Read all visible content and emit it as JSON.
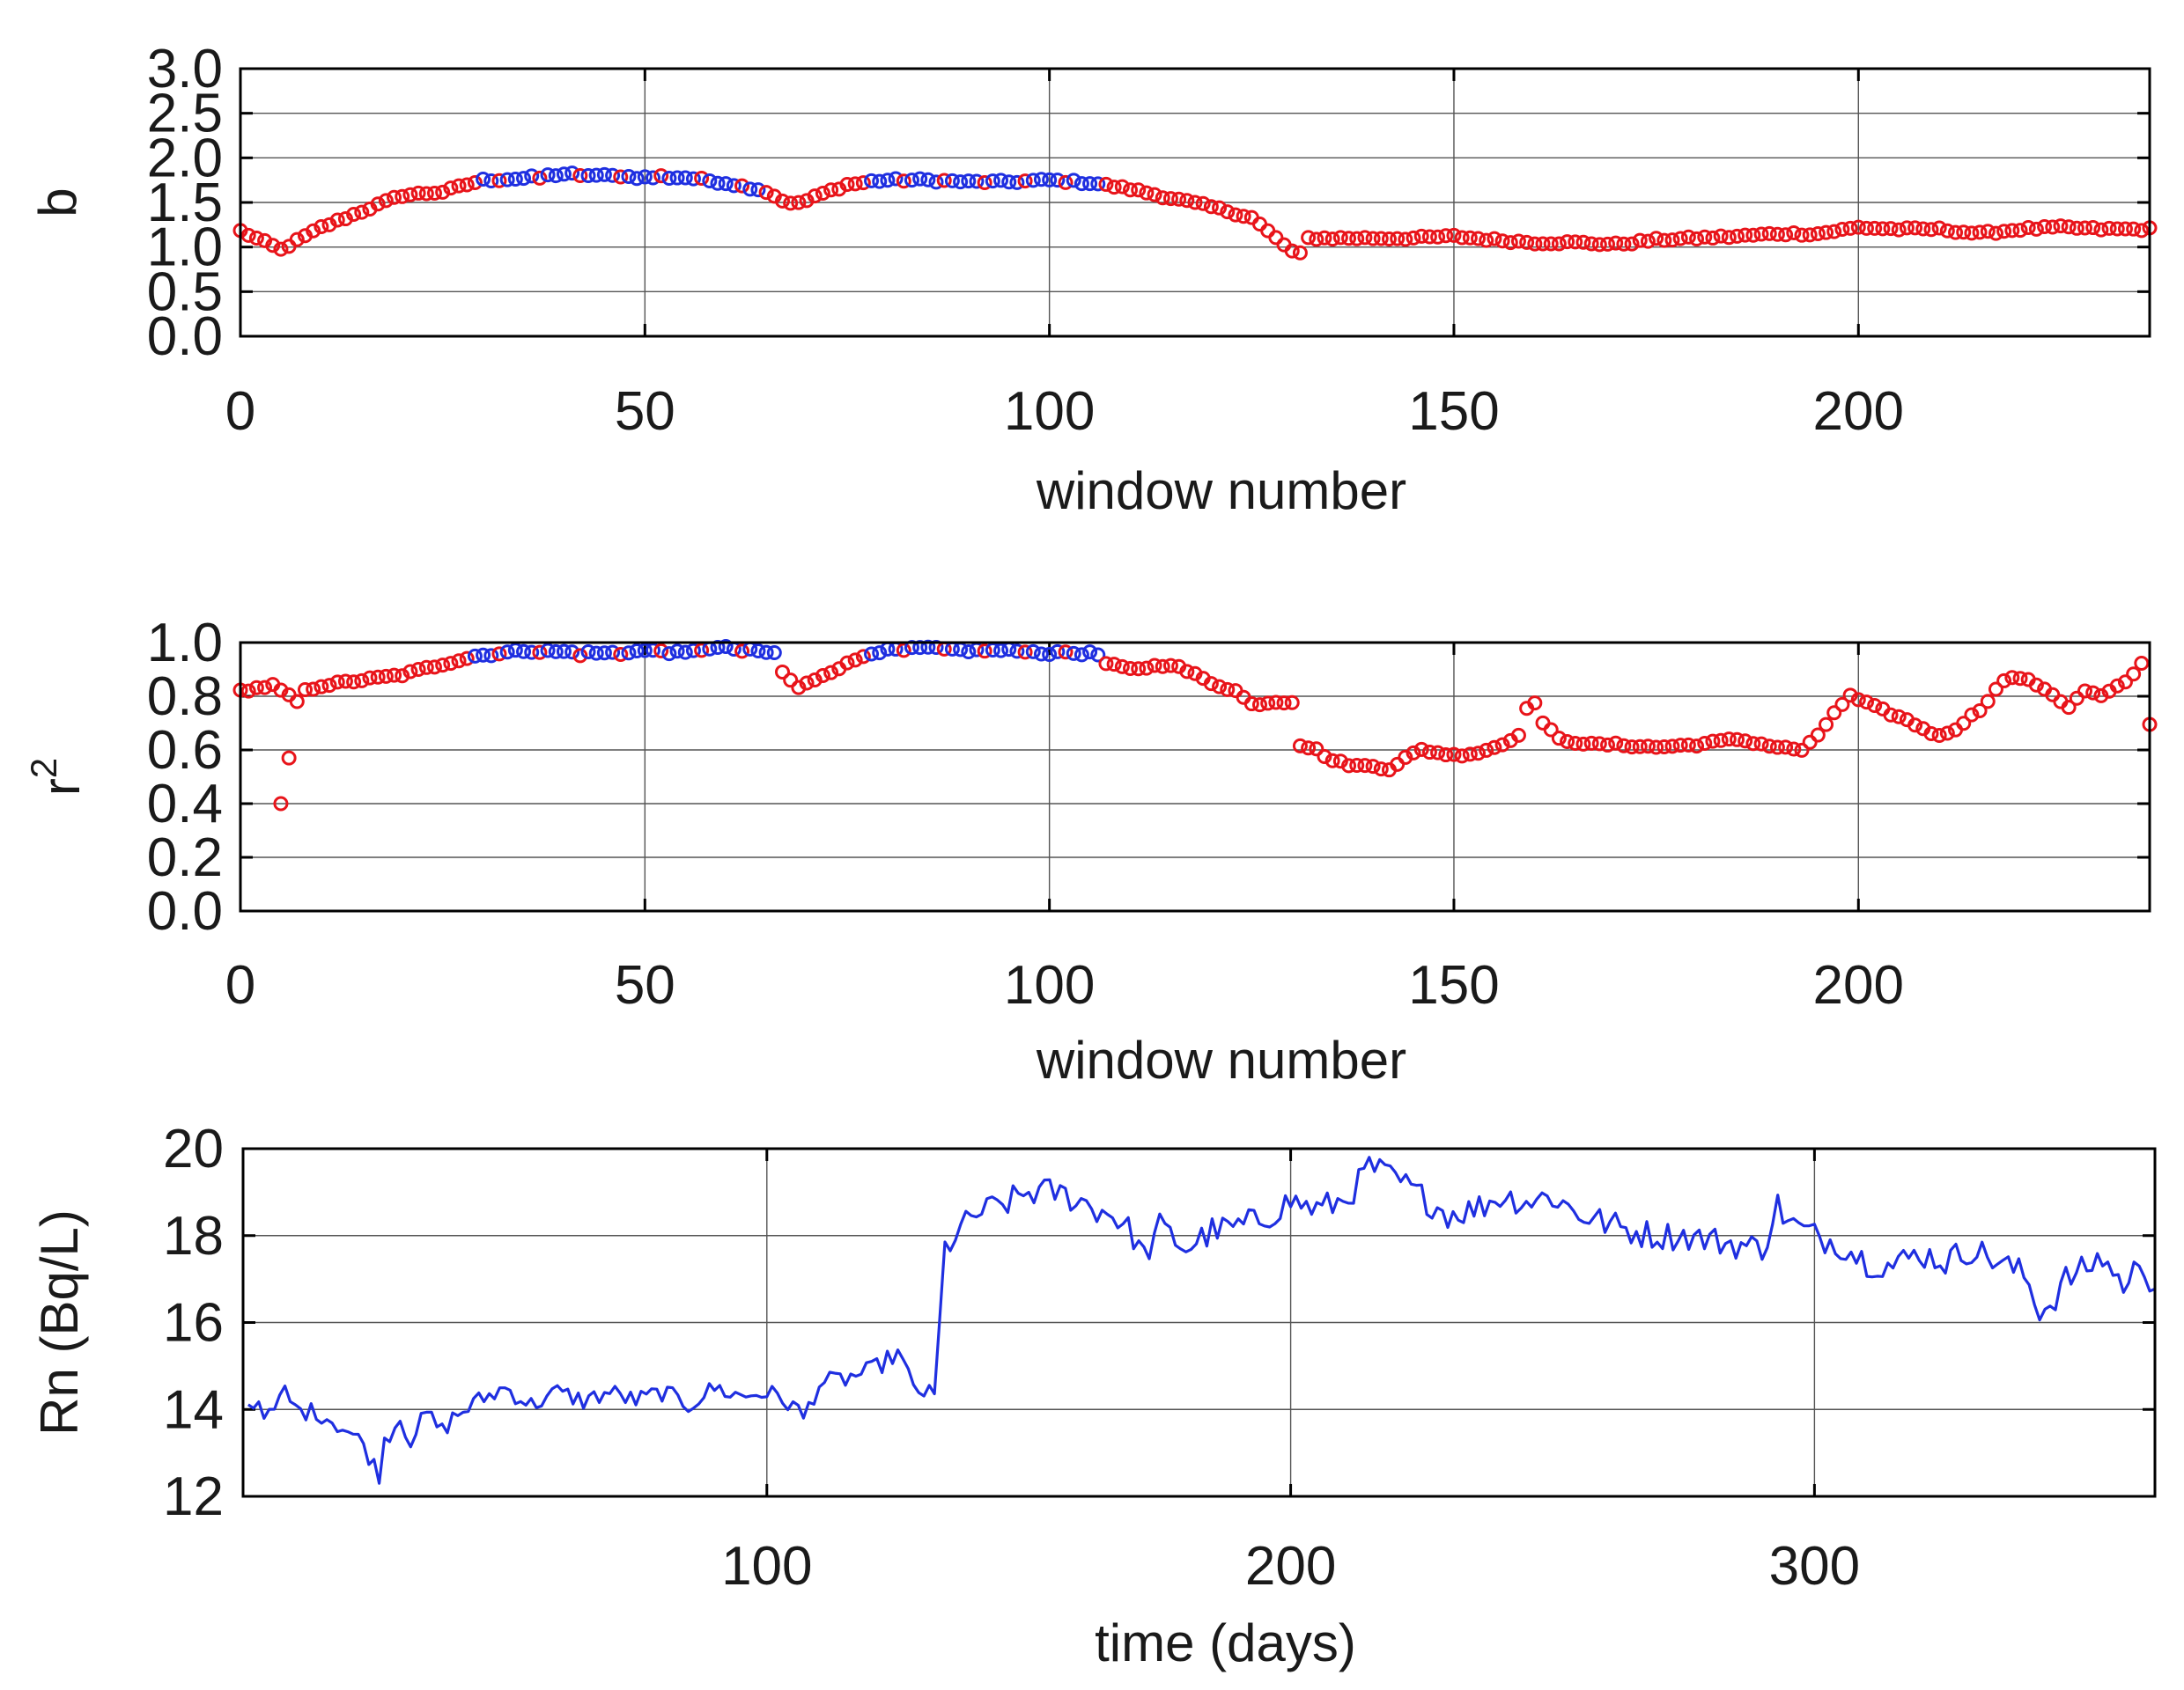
{
  "chart_data": [
    {
      "type": "scatter",
      "xlabel": "window number",
      "ylabel": "b",
      "xlim": [
        0,
        236
      ],
      "ylim": [
        0.0,
        3.0
      ],
      "xticks": [
        "0",
        "50",
        "100",
        "150",
        "200"
      ],
      "yticks": [
        "0.0",
        "0.5",
        "1.0",
        "1.5",
        "2.0",
        "2.5",
        "3.0"
      ],
      "grid": true,
      "marker": "open-circle",
      "colors": {
        "red": "#e8141a",
        "blue": "#1f2fe0"
      },
      "blue_ranges": [
        [
          30,
          64
        ],
        [
          77,
          107
        ]
      ],
      "series": [
        {
          "color": "red",
          "x": [
            0,
            5,
            10,
            15,
            20,
            25,
            28,
            30,
            45,
            50,
            55,
            60,
            65,
            68,
            70,
            72,
            75,
            80,
            85,
            90,
            95,
            100,
            105,
            110,
            115,
            120,
            125,
            128,
            130,
            131,
            132,
            135,
            140,
            145,
            150,
            155,
            160,
            165,
            170,
            175,
            180,
            185,
            190,
            195,
            200,
            205,
            210,
            215,
            220,
            225,
            230,
            236
          ],
          "y": [
            1.18,
            0.97,
            1.22,
            1.4,
            1.58,
            1.62,
            1.7,
            1.75,
            1.8,
            1.8,
            1.78,
            1.72,
            1.62,
            1.48,
            1.52,
            1.6,
            1.7,
            1.75,
            1.75,
            1.73,
            1.73,
            1.75,
            1.72,
            1.65,
            1.55,
            1.45,
            1.33,
            1.1,
            0.95,
            0.92,
            1.1,
            1.1,
            1.1,
            1.1,
            1.12,
            1.08,
            1.05,
            1.05,
            1.03,
            1.08,
            1.1,
            1.12,
            1.15,
            1.15,
            1.22,
            1.2,
            1.2,
            1.15,
            1.2,
            1.22,
            1.2,
            1.2
          ]
        },
        {
          "color": "blue",
          "x": [
            30,
            35,
            40,
            45,
            50,
            55,
            60,
            64,
            77,
            80,
            85,
            90,
            95,
            100,
            105,
            107
          ],
          "y": [
            1.75,
            1.77,
            1.82,
            1.8,
            1.78,
            1.78,
            1.72,
            1.65,
            1.73,
            1.75,
            1.75,
            1.73,
            1.73,
            1.75,
            1.72,
            1.7
          ]
        }
      ]
    },
    {
      "type": "scatter",
      "xlabel": "window number",
      "ylabel": "r2",
      "ylabel_base": "r",
      "ylabel_sup": "2",
      "xlim": [
        0,
        236
      ],
      "ylim": [
        0.0,
        1.0
      ],
      "xticks": [
        "0",
        "50",
        "100",
        "150",
        "200"
      ],
      "yticks": [
        "0.0",
        "0.2",
        "0.4",
        "0.6",
        "0.8",
        "1.0"
      ],
      "grid": true,
      "marker": "open-circle",
      "colors": {
        "red": "#e8141a",
        "blue": "#1f2fe0"
      },
      "blue_ranges": [
        [
          29,
          66
        ],
        [
          77,
          107
        ]
      ],
      "outliers": [
        [
          5,
          0.4
        ],
        [
          6,
          0.57
        ]
      ],
      "series": [
        {
          "color": "red",
          "x": [
            0,
            4,
            7,
            8,
            10,
            15,
            20,
            25,
            29,
            35,
            45,
            50,
            55,
            60,
            65,
            67,
            69,
            72,
            75,
            77,
            80,
            85,
            100,
            105,
            107,
            110,
            115,
            118,
            120,
            123,
            125,
            128,
            130,
            131,
            133,
            135,
            138,
            140,
            142,
            144,
            146,
            150,
            153,
            156,
            158,
            159,
            160,
            161,
            163,
            167,
            170,
            175,
            180,
            185,
            190,
            193,
            195,
            197,
            199,
            202,
            206,
            210,
            212,
            215,
            218,
            220,
            223,
            226,
            228,
            230,
            233,
            235,
            236
          ],
          "y": [
            0.82,
            0.84,
            0.78,
            0.82,
            0.84,
            0.86,
            0.88,
            0.92,
            0.95,
            0.97,
            0.95,
            0.97,
            0.97,
            0.98,
            0.95,
            0.89,
            0.83,
            0.88,
            0.92,
            0.95,
            0.97,
            0.97,
            0.97,
            0.96,
            0.92,
            0.9,
            0.92,
            0.88,
            0.85,
            0.82,
            0.77,
            0.78,
            0.78,
            0.62,
            0.6,
            0.56,
            0.54,
            0.54,
            0.53,
            0.57,
            0.6,
            0.58,
            0.59,
            0.62,
            0.66,
            0.75,
            0.78,
            0.7,
            0.64,
            0.62,
            0.62,
            0.61,
            0.62,
            0.64,
            0.61,
            0.6,
            0.65,
            0.74,
            0.8,
            0.76,
            0.71,
            0.65,
            0.68,
            0.75,
            0.86,
            0.87,
            0.83,
            0.76,
            0.82,
            0.8,
            0.85,
            0.92,
            0.7
          ]
        },
        {
          "color": "blue",
          "x": [
            29,
            35,
            45,
            50,
            55,
            58,
            60,
            66,
            77,
            80,
            85,
            90,
            95,
            100,
            105,
            107
          ],
          "y": [
            0.95,
            0.97,
            0.96,
            0.97,
            0.96,
            0.98,
            0.98,
            0.96,
            0.96,
            0.97,
            0.98,
            0.97,
            0.97,
            0.96,
            0.96,
            0.95
          ]
        }
      ]
    },
    {
      "type": "line",
      "xlabel": "time (days)",
      "ylabel": "Rn (Bq/L)",
      "xlim": [
        0,
        365
      ],
      "ylim": [
        12,
        20
      ],
      "xticks": [
        "100",
        "200",
        "300"
      ],
      "yticks": [
        "12",
        "14",
        "16",
        "18",
        "20"
      ],
      "grid": true,
      "color": "#1f2fe0",
      "series": [
        {
          "x": [
            0,
            3,
            5,
            8,
            10,
            15,
            20,
            23,
            25,
            26,
            27,
            30,
            32,
            35,
            38,
            40,
            45,
            50,
            55,
            60,
            65,
            70,
            75,
            80,
            85,
            90,
            95,
            100,
            105,
            107,
            110,
            115,
            120,
            125,
            128,
            130,
            132,
            133,
            134,
            136,
            140,
            145,
            150,
            155,
            160,
            163,
            166,
            170,
            172,
            175,
            178,
            180,
            185,
            190,
            195,
            200,
            205,
            210,
            213,
            215,
            218,
            220,
            225,
            230,
            235,
            240,
            245,
            250,
            255,
            260,
            265,
            270,
            275,
            280,
            285,
            290,
            293,
            295,
            300,
            305,
            310,
            315,
            320,
            325,
            330,
            335,
            340,
            343,
            345,
            348,
            350,
            355,
            358,
            360,
            362,
            365
          ],
          "y": [
            14.0,
            14.2,
            13.8,
            14.4,
            14.0,
            13.9,
            13.5,
            13.2,
            12.7,
            12.4,
            13.3,
            13.8,
            13.3,
            13.9,
            13.5,
            13.8,
            14.2,
            14.5,
            14.1,
            14.4,
            14.2,
            14.4,
            14.2,
            14.4,
            14.1,
            14.5,
            14.3,
            14.4,
            14.1,
            13.8,
            14.6,
            14.7,
            14.9,
            15.3,
            14.5,
            14.4,
            14.3,
            16.0,
            17.7,
            18.0,
            18.5,
            18.7,
            19.0,
            19.0,
            18.8,
            18.6,
            18.5,
            18.0,
            17.5,
            18.2,
            17.9,
            17.7,
            18.1,
            18.2,
            18.4,
            18.8,
            18.6,
            18.8,
            19.2,
            19.6,
            19.4,
            19.3,
            18.9,
            18.5,
            18.6,
            18.9,
            18.8,
            18.9,
            18.5,
            18.3,
            18.1,
            18.0,
            18.0,
            17.9,
            17.8,
            17.7,
            18.7,
            18.3,
            18.0,
            17.8,
            17.4,
            17.3,
            17.6,
            17.4,
            17.7,
            17.4,
            17.1,
            16.3,
            16.4,
            17.0,
            17.1,
            17.5,
            17.0,
            16.8,
            17.5,
            16.8
          ]
        }
      ]
    }
  ]
}
